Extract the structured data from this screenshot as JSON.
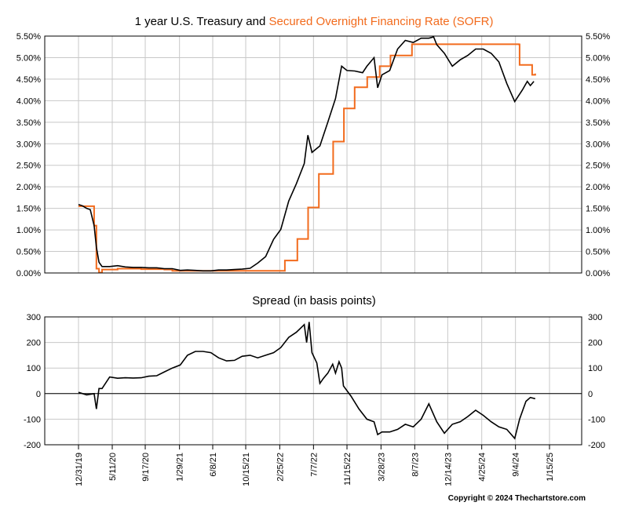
{
  "chart_data": [
    {
      "type": "line",
      "title_part1": "1 year U.S. Treasury and ",
      "title_part2": "Secured Overnight Financing Rate (SOFR)",
      "ylim": [
        0,
        5.5
      ],
      "yticks": [
        "0.00%",
        "0.50%",
        "1.00%",
        "1.50%",
        "2.00%",
        "2.50%",
        "3.00%",
        "3.50%",
        "4.00%",
        "4.50%",
        "5.00%",
        "5.50%"
      ],
      "grid": true,
      "series": [
        {
          "color": "#000000",
          "points": [
            [
              "2019-12-31",
              1.59
            ],
            [
              "2020-01-15",
              1.56
            ],
            [
              "2020-02-01",
              1.5
            ],
            [
              "2020-02-15",
              1.47
            ],
            [
              "2020-03-01",
              1.1
            ],
            [
              "2020-03-10",
              0.6
            ],
            [
              "2020-03-20",
              0.25
            ],
            [
              "2020-04-01",
              0.15
            ],
            [
              "2020-05-01",
              0.15
            ],
            [
              "2020-06-01",
              0.17
            ],
            [
              "2020-07-01",
              0.14
            ],
            [
              "2020-08-01",
              0.13
            ],
            [
              "2020-09-01",
              0.13
            ],
            [
              "2020-10-01",
              0.12
            ],
            [
              "2020-11-01",
              0.12
            ],
            [
              "2020-12-01",
              0.1
            ],
            [
              "2021-01-01",
              0.1
            ],
            [
              "2021-02-01",
              0.06
            ],
            [
              "2021-03-01",
              0.07
            ],
            [
              "2021-04-01",
              0.06
            ],
            [
              "2021-05-01",
              0.05
            ],
            [
              "2021-06-01",
              0.05
            ],
            [
              "2021-07-01",
              0.07
            ],
            [
              "2021-08-01",
              0.07
            ],
            [
              "2021-09-01",
              0.08
            ],
            [
              "2021-10-01",
              0.09
            ],
            [
              "2021-11-01",
              0.11
            ],
            [
              "2021-12-01",
              0.23
            ],
            [
              "2022-01-01",
              0.38
            ],
            [
              "2022-02-01",
              0.78
            ],
            [
              "2022-03-01",
              1.01
            ],
            [
              "2022-04-01",
              1.67
            ],
            [
              "2022-05-01",
              2.07
            ],
            [
              "2022-06-01",
              2.54
            ],
            [
              "2022-06-15",
              3.2
            ],
            [
              "2022-07-01",
              2.8
            ],
            [
              "2022-08-01",
              2.95
            ],
            [
              "2022-09-01",
              3.5
            ],
            [
              "2022-10-01",
              4.05
            ],
            [
              "2022-10-25",
              4.8
            ],
            [
              "2022-11-15",
              4.7
            ],
            [
              "2022-12-15",
              4.69
            ],
            [
              "2023-01-15",
              4.65
            ],
            [
              "2023-02-01",
              4.8
            ],
            [
              "2023-03-01",
              5.0
            ],
            [
              "2023-03-15",
              4.3
            ],
            [
              "2023-04-01",
              4.6
            ],
            [
              "2023-05-01",
              4.7
            ],
            [
              "2023-06-01",
              5.2
            ],
            [
              "2023-07-01",
              5.4
            ],
            [
              "2023-08-01",
              5.35
            ],
            [
              "2023-09-01",
              5.45
            ],
            [
              "2023-10-01",
              5.45
            ],
            [
              "2023-10-20",
              5.48
            ],
            [
              "2023-11-01",
              5.3
            ],
            [
              "2023-12-01",
              5.1
            ],
            [
              "2024-01-01",
              4.8
            ],
            [
              "2024-02-01",
              4.95
            ],
            [
              "2024-03-01",
              5.05
            ],
            [
              "2024-04-01",
              5.2
            ],
            [
              "2024-05-01",
              5.2
            ],
            [
              "2024-06-01",
              5.1
            ],
            [
              "2024-07-01",
              4.9
            ],
            [
              "2024-08-01",
              4.4
            ],
            [
              "2024-09-01",
              3.98
            ],
            [
              "2024-10-01",
              4.25
            ],
            [
              "2024-10-20",
              4.45
            ],
            [
              "2024-11-01",
              4.35
            ],
            [
              "2024-11-15",
              4.45
            ]
          ]
        },
        {
          "color": "#f26b1d",
          "points": [
            [
              "2019-12-31",
              1.55
            ],
            [
              "2020-02-20",
              1.55
            ],
            [
              "2020-03-01",
              1.1
            ],
            [
              "2020-03-10",
              0.1
            ],
            [
              "2020-03-20",
              0.01
            ],
            [
              "2020-04-01",
              0.08
            ],
            [
              "2020-06-01",
              0.1
            ],
            [
              "2020-09-01",
              0.09
            ],
            [
              "2020-12-01",
              0.08
            ],
            [
              "2021-01-01",
              0.05
            ],
            [
              "2021-06-01",
              0.05
            ],
            [
              "2021-12-31",
              0.05
            ],
            [
              "2022-03-17",
              0.29
            ],
            [
              "2022-05-05",
              0.79
            ],
            [
              "2022-06-16",
              1.52
            ],
            [
              "2022-07-28",
              2.3
            ],
            [
              "2022-09-22",
              3.05
            ],
            [
              "2022-11-03",
              3.82
            ],
            [
              "2022-12-15",
              4.31
            ],
            [
              "2023-02-02",
              4.55
            ],
            [
              "2023-03-23",
              4.8
            ],
            [
              "2023-05-04",
              5.05
            ],
            [
              "2023-07-27",
              5.31
            ],
            [
              "2024-09-19",
              5.3
            ],
            [
              "2024-09-20",
              4.83
            ],
            [
              "2024-11-08",
              4.6
            ],
            [
              "2024-11-20",
              4.63
            ]
          ]
        }
      ]
    },
    {
      "type": "line",
      "title": "Spread (in basis points)",
      "ylim": [
        -200,
        300
      ],
      "yticks": [
        "-200",
        "-100",
        "0",
        "100",
        "200",
        "300"
      ],
      "xticks": [
        "12/31/19",
        "5/11/20",
        "9/17/20",
        "1/29/21",
        "6/8/21",
        "10/15/21",
        "2/25/22",
        "7/7/22",
        "11/15/22",
        "3/28/23",
        "8/7/23",
        "12/14/23",
        "4/25/24",
        "9/4/24",
        "1/15/25"
      ],
      "grid": true,
      "series": [
        {
          "color": "#000000",
          "points": [
            [
              "2019-12-31",
              5
            ],
            [
              "2020-02-01",
              -5
            ],
            [
              "2020-03-01",
              0
            ],
            [
              "2020-03-10",
              -60
            ],
            [
              "2020-03-20",
              20
            ],
            [
              "2020-04-01",
              20
            ],
            [
              "2020-05-01",
              65
            ],
            [
              "2020-06-01",
              60
            ],
            [
              "2020-07-01",
              62
            ],
            [
              "2020-08-01",
              61
            ],
            [
              "2020-09-01",
              62
            ],
            [
              "2020-10-01",
              68
            ],
            [
              "2020-11-01",
              70
            ],
            [
              "2020-12-01",
              85
            ],
            [
              "2021-01-01",
              100
            ],
            [
              "2021-02-01",
              112
            ],
            [
              "2021-03-01",
              150
            ],
            [
              "2021-04-01",
              165
            ],
            [
              "2021-05-01",
              165
            ],
            [
              "2021-06-01",
              160
            ],
            [
              "2021-07-01",
              140
            ],
            [
              "2021-08-01",
              128
            ],
            [
              "2021-09-01",
              130
            ],
            [
              "2021-10-01",
              146
            ],
            [
              "2021-11-01",
              150
            ],
            [
              "2021-12-01",
              140
            ],
            [
              "2022-01-01",
              150
            ],
            [
              "2022-02-01",
              160
            ],
            [
              "2022-03-01",
              180
            ],
            [
              "2022-04-01",
              220
            ],
            [
              "2022-05-01",
              240
            ],
            [
              "2022-06-01",
              270
            ],
            [
              "2022-06-10",
              200
            ],
            [
              "2022-06-20",
              280
            ],
            [
              "2022-07-01",
              160
            ],
            [
              "2022-07-20",
              120
            ],
            [
              "2022-08-01",
              40
            ],
            [
              "2022-08-15",
              60
            ],
            [
              "2022-09-01",
              80
            ],
            [
              "2022-09-20",
              115
            ],
            [
              "2022-10-01",
              80
            ],
            [
              "2022-10-15",
              125
            ],
            [
              "2022-10-25",
              100
            ],
            [
              "2022-11-01",
              30
            ],
            [
              "2022-12-01",
              -10
            ],
            [
              "2023-01-01",
              -60
            ],
            [
              "2023-02-01",
              -100
            ],
            [
              "2023-03-01",
              -110
            ],
            [
              "2023-03-15",
              -160
            ],
            [
              "2023-04-01",
              -150
            ],
            [
              "2023-05-01",
              -150
            ],
            [
              "2023-06-01",
              -140
            ],
            [
              "2023-07-01",
              -120
            ],
            [
              "2023-08-01",
              -130
            ],
            [
              "2023-09-01",
              -100
            ],
            [
              "2023-10-01",
              -40
            ],
            [
              "2023-11-01",
              -110
            ],
            [
              "2023-12-01",
              -155
            ],
            [
              "2024-01-01",
              -120
            ],
            [
              "2024-02-01",
              -110
            ],
            [
              "2024-03-01",
              -90
            ],
            [
              "2024-04-01",
              -65
            ],
            [
              "2024-05-01",
              -85
            ],
            [
              "2024-06-01",
              -110
            ],
            [
              "2024-07-01",
              -130
            ],
            [
              "2024-08-01",
              -140
            ],
            [
              "2024-09-01",
              -175
            ],
            [
              "2024-09-20",
              -100
            ],
            [
              "2024-10-15",
              -30
            ],
            [
              "2024-11-01",
              -15
            ],
            [
              "2024-11-20",
              -20
            ]
          ]
        }
      ]
    }
  ],
  "copyright": "Copyright © 2024 Thechartstore.com"
}
